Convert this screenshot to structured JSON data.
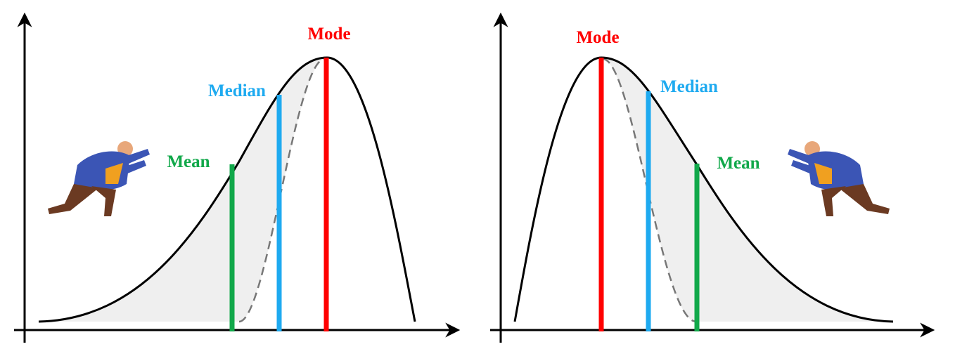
{
  "panels": [
    {
      "mode": "Mode",
      "median": "Median",
      "mean": "Mean"
    },
    {
      "mode": "Mode",
      "median": "Median",
      "mean": "Mean"
    }
  ]
}
